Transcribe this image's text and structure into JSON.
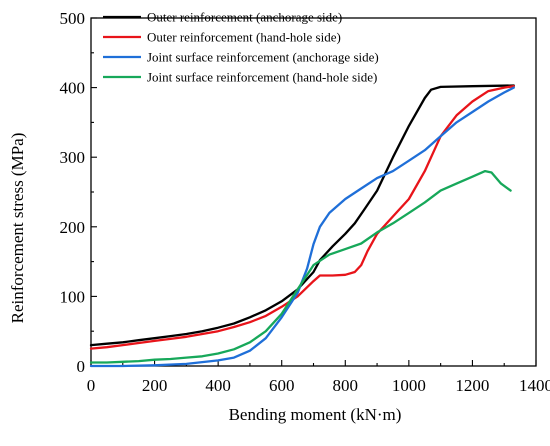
{
  "chart_data": {
    "type": "line",
    "title": "",
    "xlabel": "Bending moment  (kN·m)",
    "ylabel": "Reinforcement stress (MPa)",
    "xlim": [
      0,
      1400
    ],
    "ylim": [
      0,
      500
    ],
    "xticks": [
      0,
      200,
      400,
      600,
      800,
      1000,
      1200,
      1400
    ],
    "yticks": [
      0,
      100,
      200,
      300,
      400,
      500
    ],
    "grid": false,
    "legend_position": "top-left",
    "series": [
      {
        "name": "Outer reinforcement (anchorage side)",
        "color": "#000000",
        "points": [
          [
            0,
            30
          ],
          [
            50,
            32
          ],
          [
            100,
            34
          ],
          [
            150,
            37
          ],
          [
            200,
            40
          ],
          [
            250,
            43
          ],
          [
            300,
            46
          ],
          [
            350,
            50
          ],
          [
            400,
            55
          ],
          [
            450,
            61
          ],
          [
            500,
            70
          ],
          [
            550,
            80
          ],
          [
            600,
            93
          ],
          [
            650,
            110
          ],
          [
            700,
            135
          ],
          [
            720,
            152
          ],
          [
            760,
            172
          ],
          [
            800,
            190
          ],
          [
            830,
            205
          ],
          [
            860,
            225
          ],
          [
            900,
            252
          ],
          [
            950,
            300
          ],
          [
            1000,
            345
          ],
          [
            1050,
            385
          ],
          [
            1070,
            397
          ],
          [
            1100,
            401
          ],
          [
            1200,
            402
          ],
          [
            1330,
            403
          ]
        ]
      },
      {
        "name": "Outer reinforcement (hand-hole side)",
        "color": "#e8141a",
        "points": [
          [
            0,
            25
          ],
          [
            50,
            27
          ],
          [
            100,
            30
          ],
          [
            150,
            33
          ],
          [
            200,
            36
          ],
          [
            250,
            39
          ],
          [
            300,
            42
          ],
          [
            350,
            46
          ],
          [
            400,
            50
          ],
          [
            450,
            56
          ],
          [
            500,
            63
          ],
          [
            550,
            72
          ],
          [
            600,
            85
          ],
          [
            650,
            100
          ],
          [
            700,
            122
          ],
          [
            720,
            130
          ],
          [
            760,
            130
          ],
          [
            800,
            131
          ],
          [
            830,
            135
          ],
          [
            850,
            145
          ],
          [
            870,
            165
          ],
          [
            900,
            190
          ],
          [
            950,
            215
          ],
          [
            1000,
            240
          ],
          [
            1050,
            280
          ],
          [
            1080,
            310
          ],
          [
            1100,
            330
          ],
          [
            1150,
            360
          ],
          [
            1200,
            380
          ],
          [
            1250,
            395
          ],
          [
            1300,
            400
          ],
          [
            1330,
            402
          ]
        ]
      },
      {
        "name": "Joint surface reinforcement (anchorage side)",
        "color": "#1f6fd8",
        "points": [
          [
            0,
            0
          ],
          [
            100,
            0
          ],
          [
            200,
            1
          ],
          [
            300,
            3
          ],
          [
            400,
            8
          ],
          [
            450,
            12
          ],
          [
            500,
            22
          ],
          [
            550,
            40
          ],
          [
            600,
            70
          ],
          [
            650,
            105
          ],
          [
            680,
            140
          ],
          [
            700,
            175
          ],
          [
            720,
            200
          ],
          [
            750,
            220
          ],
          [
            800,
            240
          ],
          [
            850,
            255
          ],
          [
            900,
            270
          ],
          [
            950,
            280
          ],
          [
            1000,
            295
          ],
          [
            1050,
            310
          ],
          [
            1100,
            330
          ],
          [
            1150,
            350
          ],
          [
            1200,
            365
          ],
          [
            1250,
            380
          ],
          [
            1300,
            393
          ],
          [
            1330,
            400
          ]
        ]
      },
      {
        "name": "Joint surface reinforcement (hand-hole side)",
        "color": "#17a85a",
        "points": [
          [
            0,
            5
          ],
          [
            50,
            5
          ],
          [
            100,
            6
          ],
          [
            150,
            7
          ],
          [
            200,
            9
          ],
          [
            250,
            10
          ],
          [
            300,
            12
          ],
          [
            350,
            14
          ],
          [
            400,
            18
          ],
          [
            450,
            24
          ],
          [
            500,
            34
          ],
          [
            550,
            50
          ],
          [
            600,
            75
          ],
          [
            650,
            110
          ],
          [
            700,
            145
          ],
          [
            750,
            160
          ],
          [
            800,
            168
          ],
          [
            850,
            176
          ],
          [
            900,
            192
          ],
          [
            950,
            205
          ],
          [
            1000,
            220
          ],
          [
            1050,
            235
          ],
          [
            1100,
            252
          ],
          [
            1150,
            262
          ],
          [
            1200,
            272
          ],
          [
            1240,
            280
          ],
          [
            1260,
            278
          ],
          [
            1290,
            262
          ],
          [
            1320,
            252
          ]
        ]
      }
    ]
  }
}
